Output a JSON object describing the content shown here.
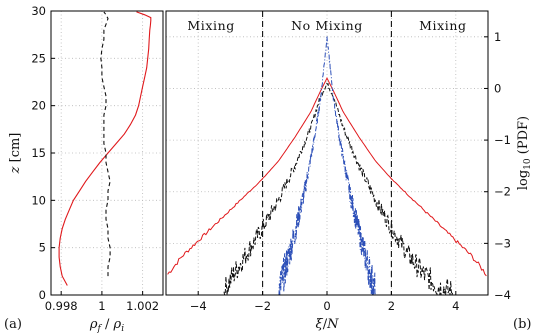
{
  "chart_data": [
    {
      "panel_label": "(a)",
      "type": "line",
      "xlabel": "ρ_f / ρ_i",
      "ylabel": "z [cm]",
      "xlim": [
        0.9975,
        1.003
      ],
      "ylim": [
        0,
        30
      ],
      "xticks": [
        "0.998",
        "1",
        "1.002"
      ],
      "yticks": [
        "0",
        "5",
        "10",
        "15",
        "20",
        "25",
        "30"
      ],
      "grid": true,
      "series": [
        {
          "style": "solid",
          "color": "#e0191c",
          "x": [
            0.9983,
            0.99805,
            0.99795,
            0.9979,
            0.9979,
            0.99795,
            0.99805,
            0.9982,
            0.9984,
            0.9986,
            0.9989,
            0.9992,
            0.99955,
            0.9999,
            1.0003,
            1.0007,
            1.0011,
            1.0014,
            1.00165,
            1.0018,
            1.0019,
            1.002,
            1.0021,
            1.0022,
            1.00225,
            1.0023,
            1.00232,
            1.00235,
            1.00238,
            1.0024,
            1.0024,
            1.0021,
            1.0017
          ],
          "y": [
            1,
            2,
            3,
            4,
            5,
            6,
            7,
            8,
            9,
            10,
            11,
            12,
            13,
            14,
            15,
            16,
            17,
            18,
            19,
            20,
            21,
            22,
            23,
            24,
            25,
            26,
            27,
            28,
            28.5,
            29,
            29.3,
            29.6,
            29.9
          ]
        },
        {
          "style": "dashed",
          "color": "#111111",
          "x": [
            1.0003,
            1.0003,
            1.0004,
            1.0004,
            1.0003,
            1.0003,
            1.0002,
            1.0002,
            1.0003,
            1.0003,
            1.0004,
            1.0003,
            1.0002,
            1.0002,
            1.0001,
            1.0001,
            1.0001,
            1.0001,
            1.0002,
            1.0002,
            1.0001,
            1.0,
            1.0,
            0.99995,
            1.0,
            1.0001,
            1.0001,
            1.0002,
            1.0003,
            1.0002,
            1.0001
          ],
          "y": [
            2,
            3,
            4,
            5,
            6,
            7,
            8,
            9,
            10,
            11,
            12,
            13,
            14,
            15,
            16,
            17,
            18,
            19,
            20,
            21,
            22,
            23,
            24,
            25,
            26,
            27,
            28,
            28.6,
            29.2,
            29.6,
            29.9
          ]
        }
      ]
    },
    {
      "panel_label": "(b)",
      "type": "line",
      "xlabel": "ξ/N",
      "ylabel": "log10 (PDF)",
      "xlim": [
        -5,
        5
      ],
      "ylim": [
        -4,
        1.5
      ],
      "xticks": [
        "-4",
        "-2",
        "0",
        "2",
        "4"
      ],
      "yticks": [
        "-4",
        "-3",
        "-2",
        "-1",
        "0",
        "1"
      ],
      "grid": true,
      "regions": [
        {
          "label": "Mixing",
          "x_center": -3.6
        },
        {
          "label": "No Mixing",
          "x_center": 0
        },
        {
          "label": "Mixing",
          "x_center": 3.6
        }
      ],
      "region_boundaries": [
        -2,
        2
      ],
      "series": [
        {
          "style": "solid",
          "color": "#e0191c",
          "x": [
            -4.95,
            -4.5,
            -4,
            -3.5,
            -3,
            -2.5,
            -2,
            -1.5,
            -1,
            -0.5,
            -0.2,
            0,
            0.2,
            0.5,
            1,
            1.5,
            2,
            2.5,
            3,
            3.5,
            4,
            4.5,
            4.95
          ],
          "y": [
            -3.6,
            -3.25,
            -2.95,
            -2.65,
            -2.35,
            -2.05,
            -1.75,
            -1.4,
            -0.95,
            -0.45,
            -0.05,
            0.2,
            -0.05,
            -0.45,
            -0.95,
            -1.4,
            -1.75,
            -2.05,
            -2.35,
            -2.65,
            -2.95,
            -3.25,
            -3.6
          ]
        },
        {
          "style": "dashed",
          "color": "#111111",
          "x": [
            -3.2,
            -3,
            -2.5,
            -2,
            -1.5,
            -1,
            -0.5,
            -0.2,
            0,
            0.2,
            0.5,
            1,
            1.5,
            2,
            2.5,
            3,
            3.5,
            3.9
          ],
          "y": [
            -3.95,
            -3.7,
            -3.2,
            -2.7,
            -2.15,
            -1.5,
            -0.75,
            -0.15,
            0.1,
            -0.15,
            -0.75,
            -1.5,
            -2.15,
            -2.7,
            -3.2,
            -3.6,
            -3.85,
            -3.95
          ],
          "noise": 0.1
        },
        {
          "style": "dash-dot",
          "color": "#2c4fb8",
          "x": [
            -1.5,
            -1.3,
            -1,
            -0.7,
            -0.4,
            -0.2,
            0,
            0.2,
            0.4,
            0.7,
            1,
            1.3,
            1.5
          ],
          "y": [
            -3.95,
            -3.5,
            -2.8,
            -2.0,
            -1.0,
            -0.2,
            1.0,
            -0.2,
            -1.0,
            -2.0,
            -2.8,
            -3.5,
            -3.95
          ],
          "noise": 0.15
        }
      ]
    }
  ]
}
